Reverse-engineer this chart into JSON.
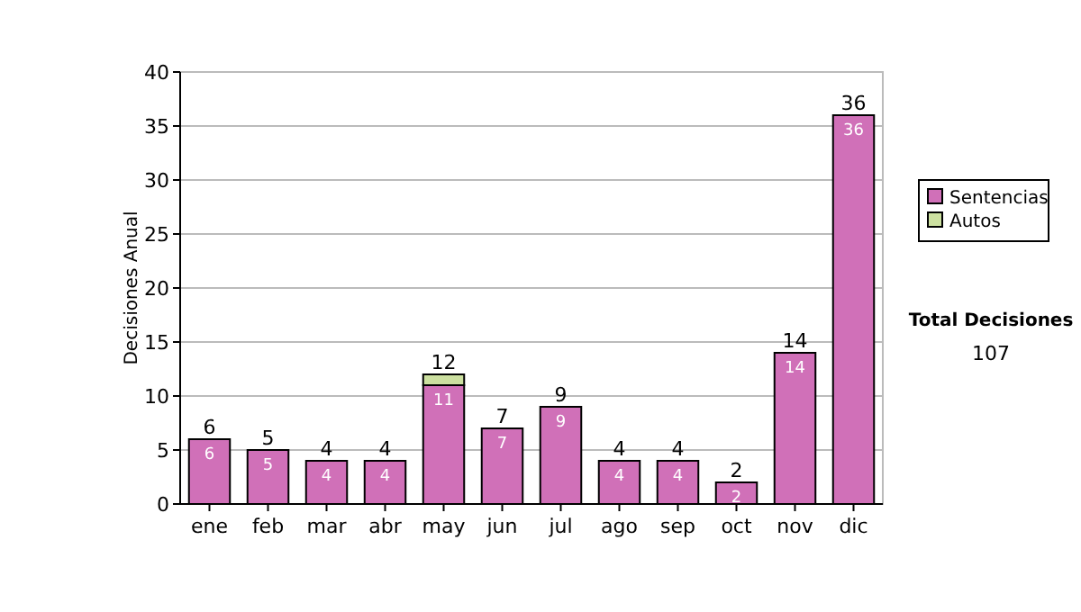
{
  "chart_data": {
    "type": "bar",
    "stacked": true,
    "ylabel": "Decisiones Anual",
    "categories": [
      "ene",
      "feb",
      "mar",
      "abr",
      "may",
      "jun",
      "jul",
      "ago",
      "sep",
      "oct",
      "nov",
      "dic"
    ],
    "series": [
      {
        "name": "Sentencias",
        "color": "#d070b8",
        "values": [
          6,
          5,
          4,
          4,
          11,
          7,
          9,
          4,
          4,
          2,
          14,
          36
        ],
        "value_labels": [
          "6",
          "5",
          "4",
          "4",
          "11",
          "7",
          "9",
          "4",
          "4",
          "2",
          "14",
          "36"
        ]
      },
      {
        "name": "Autos",
        "color": "#cce0a0",
        "values": [
          0,
          0,
          0,
          0,
          1,
          0,
          0,
          0,
          0,
          0,
          0,
          0
        ],
        "value_labels": [
          null,
          null,
          null,
          null,
          null,
          null,
          null,
          null,
          null,
          null,
          null,
          null
        ]
      }
    ],
    "totals": [
      "6",
      "5",
      "4",
      "4",
      "12",
      "7",
      "9",
      "4",
      "4",
      "2",
      "14",
      "36"
    ],
    "ylim": [
      0,
      40
    ],
    "yticks": [
      0,
      5,
      10,
      15,
      20,
      25,
      30,
      35,
      40
    ],
    "grid": "y",
    "legend": "right",
    "annotations": [
      "Total Decisiones",
      "107"
    ]
  }
}
